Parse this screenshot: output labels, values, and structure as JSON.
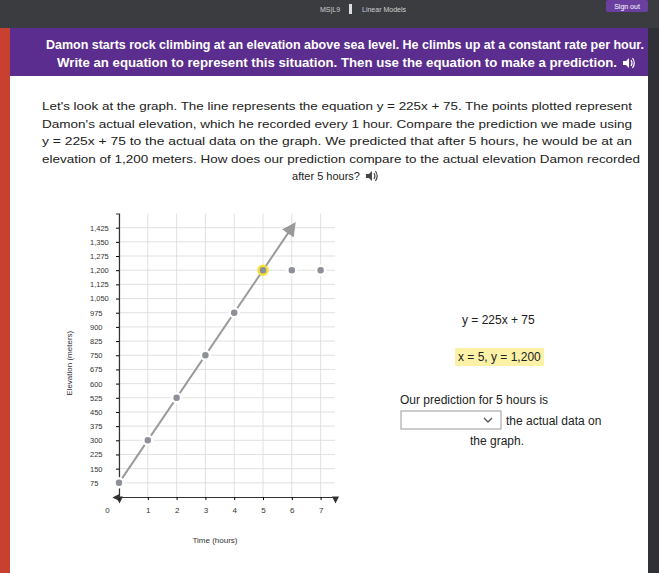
{
  "page": {
    "top_bar": {
      "course": "MS|L9",
      "lesson": "Linear Models",
      "button": "Sign out"
    },
    "banner": [
      "Damon starts rock climbing at an elevation above sea level. He climbs up at a constant rate per hour.",
      "Write an equation to represent this situation. Then use the equation to make a prediction."
    ],
    "paragraph": [
      "Let's look at the graph. The line represents the equation y = 225x + 75. The points plotted represent",
      "Damon's actual elevation, which he recorded every 1 hour. Compare the prediction we made using",
      "y = 225x + 75 to the actual data on the graph. We predicted that after 5 hours, he would be at an",
      "elevation of 1,200 meters. How does our prediction compare to the actual elevation Damon recorded",
      "after 5 hours?"
    ],
    "side": {
      "equation": "y = 225x + 75",
      "point": "x = 5, y = 1,200",
      "prompt_1": "Our prediction for 5 hours is",
      "prompt_2": "the actual data on",
      "prompt_3": "the graph."
    }
  },
  "chart_data": {
    "type": "line",
    "x_label": "Time (hours)",
    "y_label": "Elevation (meters)",
    "xlim": [
      0,
      7.5
    ],
    "ylim": [
      0,
      1500
    ],
    "xticks": [
      0,
      1,
      2,
      3,
      4,
      5,
      6,
      7
    ],
    "yticks": [
      75,
      150,
      225,
      300,
      375,
      450,
      525,
      600,
      675,
      750,
      825,
      900,
      975,
      {
        "value": 1050,
        "label": "1,050"
      },
      {
        "value": 1125,
        "label": "1,125"
      },
      {
        "value": 1200,
        "label": "1,200"
      },
      {
        "value": 1275,
        "label": "1,275"
      },
      {
        "value": 1350,
        "label": "1,350"
      },
      {
        "value": 1425,
        "label": "1,425"
      }
    ],
    "grid": true,
    "series": [
      {
        "type": "line",
        "color": "#9a9a9a",
        "line_style": "solid",
        "marker": "none",
        "x": [
          0,
          6
        ],
        "values": [
          75,
          1425
        ]
      },
      {
        "type": "scatter",
        "color": "#8d9099",
        "marker": "circle",
        "colors": [
          "#ffffff",
          "#ffffff",
          "#ffffff",
          "#ffffff",
          "#ffffff",
          "#f2df3a",
          "#ffffff",
          "#ffffff"
        ],
        "x": [
          0,
          1,
          2,
          3,
          4,
          5,
          6,
          7
        ],
        "values": [
          75,
          300,
          525,
          750,
          975,
          1200,
          1200,
          1200
        ]
      }
    ]
  }
}
